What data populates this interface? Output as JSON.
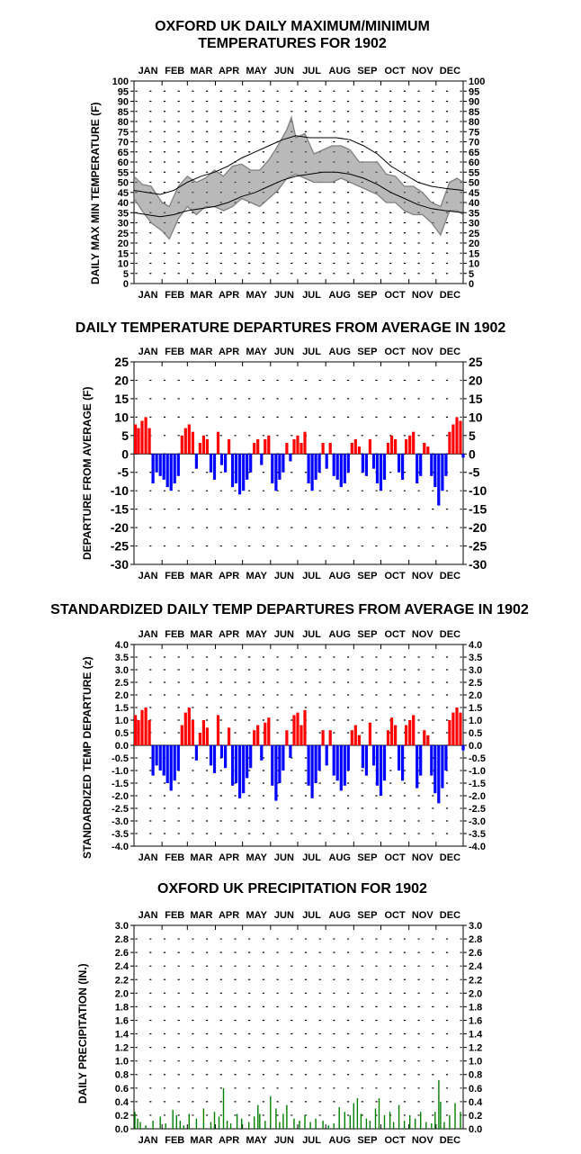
{
  "months": [
    "JAN",
    "FEB",
    "MAR",
    "APR",
    "MAY",
    "JUN",
    "JUL",
    "AUG",
    "SEP",
    "OCT",
    "NOV",
    "DEC"
  ],
  "colors": {
    "max_min_band": "#808080",
    "normals": "#000000",
    "positive": "#ff0000",
    "negative": "#0000ff",
    "precip": "#008000"
  },
  "chart_data": [
    {
      "type": "line",
      "title_line1": "OXFORD UK DAILY MAXIMUM/MINIMUM",
      "title_line2": "TEMPERATURES FOR 1902",
      "ylabel": "DAILY MAX MIN TEMPERATURE (F)",
      "ylim": [
        0,
        100
      ],
      "ytick_labels": [
        "0",
        "5",
        "10",
        "15",
        "20",
        "25",
        "30",
        "35",
        "40",
        "45",
        "50",
        "55",
        "60",
        "65",
        "70",
        "75",
        "80",
        "85",
        "90",
        "95",
        "100"
      ],
      "series": [
        {
          "values": [
            [
              1,
              46
            ],
            [
              15,
              45
            ],
            [
              30,
              44
            ],
            [
              45,
              46
            ],
            [
              60,
              50
            ],
            [
              75,
              53
            ],
            [
              90,
              55
            ],
            [
              105,
              58
            ],
            [
              120,
              62
            ],
            [
              135,
              65
            ],
            [
              150,
              68
            ],
            [
              165,
              71
            ],
            [
              180,
              73
            ],
            [
              195,
              72
            ],
            [
              210,
              72
            ],
            [
              225,
              72
            ],
            [
              240,
              71
            ],
            [
              255,
              68
            ],
            [
              270,
              64
            ],
            [
              285,
              58
            ],
            [
              300,
              54
            ],
            [
              315,
              50
            ],
            [
              330,
              48
            ],
            [
              345,
              47
            ],
            [
              365,
              46
            ]
          ]
        },
        {
          "values": [
            [
              1,
              35
            ],
            [
              15,
              34
            ],
            [
              30,
              33
            ],
            [
              45,
              34
            ],
            [
              60,
              36
            ],
            [
              75,
              37
            ],
            [
              90,
              38
            ],
            [
              105,
              40
            ],
            [
              120,
              43
            ],
            [
              135,
              45
            ],
            [
              150,
              48
            ],
            [
              165,
              51
            ],
            [
              180,
              53
            ],
            [
              195,
              54
            ],
            [
              210,
              55
            ],
            [
              225,
              55
            ],
            [
              240,
              54
            ],
            [
              255,
              52
            ],
            [
              270,
              49
            ],
            [
              285,
              45
            ],
            [
              300,
              42
            ],
            [
              315,
              39
            ],
            [
              330,
              37
            ],
            [
              345,
              36
            ],
            [
              365,
              35
            ]
          ]
        },
        {
          "values": [
            [
              1,
              53
            ],
            [
              10,
              49
            ],
            [
              20,
              48
            ],
            [
              32,
              40
            ],
            [
              40,
              38
            ],
            [
              50,
              48
            ],
            [
              60,
              53
            ],
            [
              70,
              50
            ],
            [
              80,
              52
            ],
            [
              90,
              56
            ],
            [
              100,
              53
            ],
            [
              110,
              58
            ],
            [
              120,
              59
            ],
            [
              130,
              56
            ],
            [
              140,
              56
            ],
            [
              150,
              61
            ],
            [
              160,
              68
            ],
            [
              170,
              76
            ],
            [
              175,
              82
            ],
            [
              180,
              72
            ],
            [
              190,
              74
            ],
            [
              200,
              64
            ],
            [
              210,
              66
            ],
            [
              220,
              68
            ],
            [
              230,
              68
            ],
            [
              240,
              66
            ],
            [
              250,
              60
            ],
            [
              260,
              60
            ],
            [
              270,
              60
            ],
            [
              280,
              54
            ],
            [
              290,
              53
            ],
            [
              300,
              48
            ],
            [
              310,
              48
            ],
            [
              320,
              45
            ],
            [
              330,
              40
            ],
            [
              340,
              38
            ],
            [
              350,
              50
            ],
            [
              358,
              52
            ],
            [
              365,
              50
            ]
          ]
        },
        {
          "values": [
            [
              1,
              42
            ],
            [
              10,
              36
            ],
            [
              20,
              30
            ],
            [
              32,
              26
            ],
            [
              40,
              22
            ],
            [
              50,
              32
            ],
            [
              60,
              38
            ],
            [
              70,
              34
            ],
            [
              80,
              38
            ],
            [
              90,
              38
            ],
            [
              100,
              36
            ],
            [
              110,
              38
            ],
            [
              120,
              42
            ],
            [
              130,
              40
            ],
            [
              140,
              38
            ],
            [
              150,
              42
            ],
            [
              160,
              46
            ],
            [
              170,
              52
            ],
            [
              180,
              54
            ],
            [
              190,
              52
            ],
            [
              200,
              50
            ],
            [
              210,
              50
            ],
            [
              220,
              50
            ],
            [
              230,
              52
            ],
            [
              240,
              50
            ],
            [
              250,
              48
            ],
            [
              260,
              46
            ],
            [
              270,
              44
            ],
            [
              280,
              40
            ],
            [
              290,
              40
            ],
            [
              300,
              36
            ],
            [
              310,
              34
            ],
            [
              320,
              34
            ],
            [
              330,
              30
            ],
            [
              340,
              24
            ],
            [
              350,
              36
            ],
            [
              358,
              36
            ],
            [
              365,
              34
            ]
          ]
        }
      ]
    },
    {
      "type": "bar",
      "title": "DAILY TEMPERATURE DEPARTURES FROM AVERAGE IN 1902",
      "ylabel": "DEPARTURE FROM AVERAGE (F)",
      "ylim": [
        -30,
        25
      ],
      "ytick_labels": [
        "-30",
        "-25",
        "-20",
        "-15",
        "-10",
        "-5",
        "0",
        "5",
        "10",
        "15",
        "20",
        "25"
      ],
      "x": [
        1,
        6,
        10,
        14,
        18,
        22,
        26,
        30,
        34,
        38,
        42,
        46,
        50,
        54,
        58,
        62,
        66,
        70,
        74,
        78,
        82,
        86,
        90,
        94,
        98,
        102,
        106,
        110,
        114,
        118,
        122,
        126,
        130,
        134,
        138,
        142,
        146,
        150,
        154,
        158,
        162,
        166,
        170,
        174,
        178,
        182,
        186,
        190,
        194,
        198,
        202,
        206,
        210,
        214,
        218,
        222,
        226,
        230,
        234,
        238,
        242,
        246,
        250,
        254,
        258,
        262,
        266,
        270,
        274,
        278,
        282,
        286,
        290,
        294,
        298,
        302,
        306,
        310,
        314,
        318,
        322,
        326,
        330,
        334,
        338,
        342,
        346,
        350,
        354,
        358,
        362,
        365
      ],
      "values": [
        8,
        7,
        9,
        10,
        7,
        -8,
        -5,
        -6,
        -7,
        -9,
        -10,
        -8,
        -6,
        5,
        7,
        8,
        6,
        -4,
        3,
        5,
        4,
        -5,
        -7,
        6,
        -3,
        -5,
        4,
        -9,
        -8,
        -11,
        -10,
        -7,
        -5,
        3,
        4,
        -3,
        4,
        5,
        -8,
        -10,
        -7,
        -5,
        3,
        -2,
        4,
        5,
        3,
        6,
        -8,
        -10,
        -7,
        -5,
        3,
        -4,
        3,
        -6,
        -7,
        -9,
        -8,
        -5,
        3,
        4,
        2,
        -5,
        -6,
        4,
        -4,
        -8,
        -10,
        -7,
        3,
        5,
        4,
        -5,
        -7,
        4,
        5,
        6,
        -8,
        -6,
        3,
        2,
        -6,
        -9,
        -14,
        -10,
        -6,
        6,
        8,
        10,
        9,
        -1
      ]
    },
    {
      "type": "bar",
      "title": "STANDARDIZED DAILY TEMP DEPARTURES FROM AVERAGE IN 1902",
      "ylabel": "STANDARDIZED TEMP DEPARTURE (z)",
      "ylim": [
        -4.0,
        4.0
      ],
      "ytick_labels": [
        "-4.0",
        "-3.5",
        "-3.0",
        "-2.5",
        "-2.0",
        "-1.5",
        "-1.0",
        "-0.5",
        "0.0",
        "0.5",
        "1.0",
        "1.5",
        "2.0",
        "2.5",
        "3.0",
        "3.5",
        "4.0"
      ],
      "x": [
        1,
        6,
        10,
        14,
        18,
        22,
        26,
        30,
        34,
        38,
        42,
        46,
        50,
        54,
        58,
        62,
        66,
        70,
        74,
        78,
        82,
        86,
        90,
        94,
        98,
        102,
        106,
        110,
        114,
        118,
        122,
        126,
        130,
        134,
        138,
        142,
        146,
        150,
        154,
        158,
        162,
        166,
        170,
        174,
        178,
        182,
        186,
        190,
        194,
        198,
        202,
        206,
        210,
        214,
        218,
        222,
        226,
        230,
        234,
        238,
        242,
        246,
        250,
        254,
        258,
        262,
        266,
        270,
        274,
        278,
        282,
        286,
        290,
        294,
        298,
        302,
        306,
        310,
        314,
        318,
        322,
        326,
        330,
        334,
        338,
        342,
        346,
        350,
        354,
        358,
        362,
        365
      ],
      "values": [
        1.2,
        1.0,
        1.4,
        1.5,
        1.0,
        -1.2,
        -0.8,
        -1.0,
        -1.2,
        -1.5,
        -1.8,
        -1.4,
        -1.0,
        0.8,
        1.3,
        1.5,
        1.0,
        -0.6,
        0.5,
        1.0,
        0.7,
        -0.8,
        -1.1,
        1.2,
        -0.5,
        -0.9,
        0.7,
        -1.6,
        -1.5,
        -2.1,
        -1.9,
        -1.3,
        -0.9,
        0.6,
        0.8,
        -0.6,
        0.9,
        1.1,
        -1.6,
        -2.2,
        -1.5,
        -1.0,
        0.6,
        -0.5,
        1.2,
        1.3,
        0.8,
        1.4,
        -1.6,
        -2.1,
        -1.5,
        -1.0,
        0.6,
        -0.8,
        0.6,
        -1.2,
        -1.4,
        -1.8,
        -1.6,
        -1.0,
        0.6,
        0.8,
        0.4,
        -0.9,
        -1.2,
        0.9,
        -0.8,
        -1.6,
        -2.0,
        -1.4,
        0.6,
        1.1,
        0.8,
        -1.0,
        -1.4,
        0.8,
        1.0,
        1.2,
        -1.7,
        -1.2,
        0.6,
        0.4,
        -1.2,
        -1.9,
        -2.3,
        -1.7,
        -1.0,
        1.0,
        1.3,
        1.5,
        1.3,
        -0.2
      ]
    },
    {
      "type": "bar",
      "title": "OXFORD UK PRECIPITATION FOR 1902",
      "ylabel": "DAILY PRECIPITATION (IN.)",
      "ylim": [
        0,
        3.0
      ],
      "ytick_labels": [
        "0.0",
        "0.2",
        "0.4",
        "0.6",
        "0.8",
        "1.0",
        "1.2",
        "1.4",
        "1.6",
        "1.8",
        "2.0",
        "2.2",
        "2.4",
        "2.6",
        "2.8",
        "3.0"
      ],
      "x": [
        2,
        5,
        8,
        14,
        22,
        30,
        36,
        44,
        48,
        52,
        56,
        62,
        70,
        78,
        86,
        90,
        95,
        100,
        104,
        108,
        115,
        120,
        128,
        134,
        138,
        140,
        146,
        152,
        158,
        162,
        166,
        170,
        178,
        184,
        190,
        196,
        202,
        210,
        216,
        222,
        228,
        234,
        240,
        244,
        248,
        252,
        258,
        262,
        268,
        272,
        278,
        284,
        288,
        294,
        300,
        306,
        312,
        318,
        324,
        330,
        334,
        338,
        340,
        344,
        350,
        356,
        362
      ],
      "values": [
        0.25,
        0.15,
        0.1,
        0.05,
        0.12,
        0.18,
        0.08,
        0.28,
        0.2,
        0.12,
        0.05,
        0.22,
        0.15,
        0.3,
        0.1,
        0.25,
        0.18,
        0.6,
        0.12,
        0.08,
        0.22,
        0.15,
        0.1,
        0.18,
        0.35,
        0.22,
        0.12,
        0.48,
        0.3,
        0.1,
        0.22,
        0.35,
        0.15,
        0.12,
        0.2,
        0.1,
        0.15,
        0.12,
        0.05,
        0.08,
        0.32,
        0.25,
        0.2,
        0.38,
        0.45,
        0.22,
        0.15,
        0.12,
        0.3,
        0.45,
        0.2,
        0.25,
        0.1,
        0.35,
        0.12,
        0.2,
        0.15,
        0.25,
        0.1,
        0.08,
        0.25,
        0.72,
        0.4,
        0.1,
        0.2,
        0.38,
        0.25
      ]
    }
  ]
}
